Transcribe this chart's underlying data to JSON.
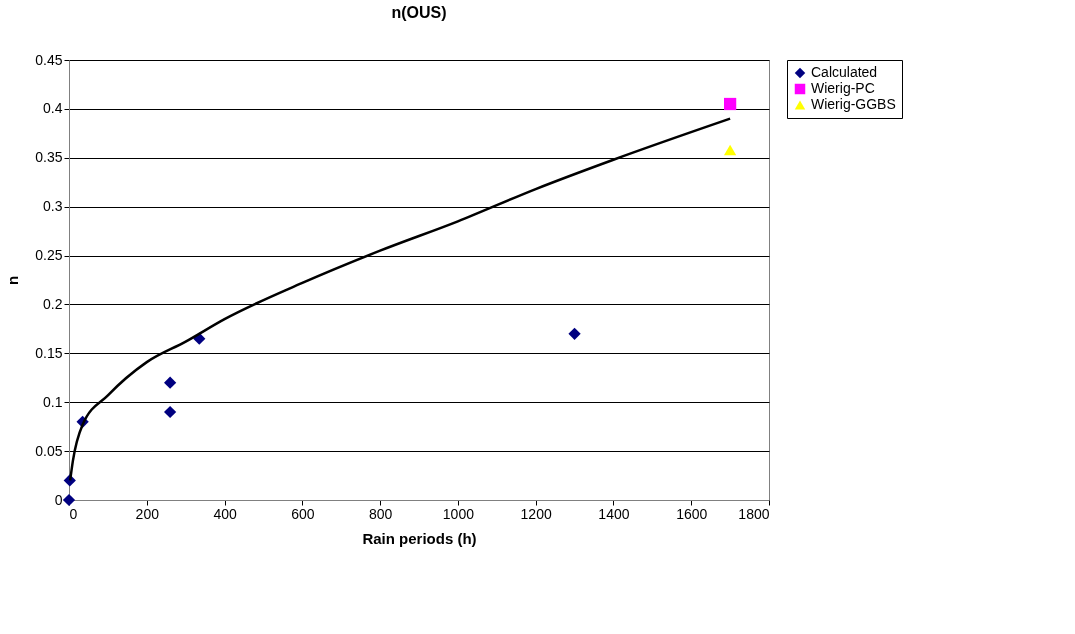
{
  "chart_data": {
    "type": "scatter",
    "title": "n(OUS)",
    "xlabel": "Rain periods (h)",
    "ylabel": "n",
    "xlim": [
      0,
      1800
    ],
    "xticks": [
      0,
      200,
      400,
      600,
      800,
      1000,
      1200,
      1400,
      1600,
      1800
    ],
    "ylim": [
      0,
      0.45
    ],
    "yticks": [
      0,
      0.05,
      0.1,
      0.15,
      0.2,
      0.25,
      0.3,
      0.35,
      0.4,
      0.45
    ],
    "grid": "y",
    "legend": "right",
    "series": [
      {
        "name": "Calculated",
        "color": "#000080",
        "marker": "diamond",
        "x": [
          0,
          2,
          35,
          260,
          260,
          335,
          1300
        ],
        "values": [
          0,
          0.02,
          0.08,
          0.12,
          0.09,
          0.165,
          0.17
        ]
      },
      {
        "name": "Wierig-PC",
        "color": "#ff00ff",
        "marker": "square",
        "x": [
          1700
        ],
        "values": [
          0.405
        ]
      },
      {
        "name": "Wierig-GGBS",
        "color": "#ffff00",
        "marker": "triangle",
        "x": [
          1700
        ],
        "values": [
          0.358
        ]
      },
      {
        "type": "line",
        "color": "#000000",
        "marker": "none",
        "x": [
          3,
          10,
          35,
          100,
          200,
          300,
          400,
          600,
          800,
          1000,
          1200,
          1400,
          1700
        ],
        "values": [
          0.02,
          0.04,
          0.077,
          0.107,
          0.141,
          0.162,
          0.185,
          0.222,
          0.255,
          0.285,
          0.318,
          0.348,
          0.39
        ]
      }
    ]
  }
}
